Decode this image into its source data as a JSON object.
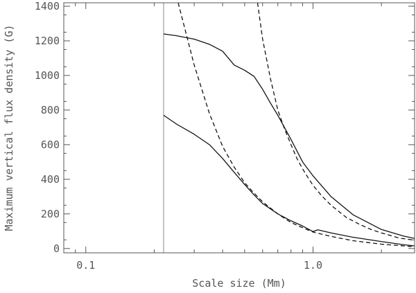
{
  "chart_data": {
    "type": "line",
    "title": "",
    "xlabel": "Scale size (Mm)",
    "ylabel": "Maximum vertical flux density (G)",
    "x_scale": "log",
    "xlim": [
      0.08,
      2.8
    ],
    "ylim": [
      -25,
      1420
    ],
    "x_ticks": [
      {
        "value": 0.1,
        "label": "0.1"
      },
      {
        "value": 1.0,
        "label": "1.0"
      }
    ],
    "y_ticks": [
      {
        "value": 0,
        "label": "0"
      },
      {
        "value": 200,
        "label": "200"
      },
      {
        "value": 400,
        "label": "400"
      },
      {
        "value": 600,
        "label": "600"
      },
      {
        "value": 800,
        "label": "800"
      },
      {
        "value": 1000,
        "label": "1000"
      },
      {
        "value": 1200,
        "label": "1200"
      },
      {
        "value": 1400,
        "label": "1400"
      }
    ],
    "grid": false,
    "reference_line_x": 0.22,
    "series": [
      {
        "style": "solid",
        "x": [
          0.22,
          0.25,
          0.3,
          0.35,
          0.4,
          0.45,
          0.5,
          0.55,
          0.6,
          0.65,
          0.7,
          0.8,
          0.9,
          1.0,
          1.2,
          1.5,
          2.0,
          2.5,
          2.8
        ],
        "y": [
          1240,
          1230,
          1210,
          1180,
          1140,
          1060,
          1030,
          995,
          920,
          840,
          770,
          630,
          500,
          420,
          300,
          195,
          110,
          72,
          58
        ]
      },
      {
        "style": "solid",
        "x": [
          0.22,
          0.25,
          0.3,
          0.35,
          0.4,
          0.45,
          0.5,
          0.55,
          0.6,
          0.7,
          0.8,
          0.9,
          1.0,
          1.05,
          1.2,
          1.5,
          2.0,
          2.5,
          2.8
        ],
        "y": [
          770,
          720,
          660,
          600,
          520,
          440,
          370,
          310,
          260,
          200,
          160,
          130,
          98,
          108,
          90,
          65,
          40,
          22,
          15
        ]
      },
      {
        "style": "dashed",
        "x": [
          0.255,
          0.3,
          0.35,
          0.4,
          0.45,
          0.5,
          0.55,
          0.6,
          0.7,
          0.8,
          0.9,
          1.0,
          1.2,
          1.5,
          2.0,
          2.5,
          2.8
        ],
        "y": [
          1420,
          1060,
          780,
          590,
          470,
          380,
          320,
          270,
          200,
          150,
          120,
          95,
          70,
          45,
          25,
          15,
          10
        ]
      },
      {
        "style": "dashed",
        "x": [
          0.57,
          0.6,
          0.65,
          0.7,
          0.75,
          0.8,
          0.85,
          0.9,
          0.95,
          1.0,
          1.1,
          1.2,
          1.4,
          1.6,
          1.8,
          2.0,
          2.4,
          2.8
        ],
        "y": [
          1420,
          1210,
          980,
          800,
          690,
          600,
          520,
          460,
          410,
          365,
          300,
          250,
          180,
          140,
          110,
          90,
          60,
          48
        ]
      }
    ]
  }
}
